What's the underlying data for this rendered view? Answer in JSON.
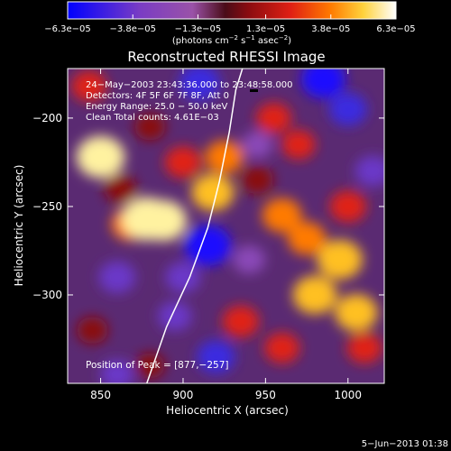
{
  "chart_data": {
    "type": "heatmap",
    "title": "Reconstructed RHESSI Image",
    "xlabel": "Heliocentric X (arcsec)",
    "ylabel": "Heliocentric Y (arcsec)",
    "xlim": [
      830,
      1022
    ],
    "ylim": [
      -350,
      -172
    ],
    "x_ticks": [
      850,
      900,
      950,
      1000
    ],
    "x_tick_labels": [
      "850",
      "900",
      "950",
      "1000"
    ],
    "y_ticks": [
      -200,
      -250,
      -300
    ],
    "y_tick_labels": [
      "−200",
      "−250",
      "−300"
    ],
    "colorbar": {
      "range": [
        -6.3e-05,
        6.3e-05
      ],
      "ticks": [
        -6.3e-05,
        -3.8e-05,
        -1.3e-05,
        1.3e-05,
        3.8e-05,
        6.3e-05
      ],
      "tick_labels": [
        "−6.3e−05",
        "−3.8e−05",
        "−1.3e−05",
        "1.3e−05",
        "3.8e−05",
        "6.3e−05"
      ],
      "units_main": "(photons cm",
      "units_exp1": "−2",
      "units_mid": " s",
      "units_exp2": "−1",
      "units_mid2": " asec",
      "units_exp3": "−2",
      "units_end": ")",
      "colors": [
        "#0000ff",
        "#7a3cc4",
        "#9a52a8",
        "#5a0f1e",
        "#c81414",
        "#ff6a00",
        "#ffd23c",
        "#ffffff"
      ]
    },
    "info_lines": [
      "24−May−2003 23:43:36.000 to 23:48:58.000",
      "Detectors: 4F 5F 6F 7F 8F, Att 0",
      "Energy Range: 25.0 − 50.0 keV",
      "Clean     Total counts: 4.61E−03"
    ],
    "peak_label": "Position of Peak = [877,−257]",
    "limb_line": [
      [
        878,
        -350
      ],
      [
        890,
        -318
      ],
      [
        904,
        -290
      ],
      [
        915,
        -262
      ],
      [
        922,
        -236
      ],
      [
        928,
        -208
      ],
      [
        932,
        -184
      ],
      [
        936,
        -172
      ]
    ],
    "blobs": [
      {
        "x": 850,
        "y": -222,
        "v": 0.95
      },
      {
        "x": 843,
        "y": -182,
        "v": 0.5
      },
      {
        "x": 862,
        "y": -240,
        "v": 0.4
      },
      {
        "x": 868,
        "y": -260,
        "v": 0.6
      },
      {
        "x": 900,
        "y": -225,
        "v": 0.55
      },
      {
        "x": 878,
        "y": -257,
        "v": 1.0
      },
      {
        "x": 888,
        "y": -258,
        "v": 0.9
      },
      {
        "x": 880,
        "y": -205,
        "v": 0.35
      },
      {
        "x": 918,
        "y": -242,
        "v": 0.75
      },
      {
        "x": 925,
        "y": -222,
        "v": 0.6
      },
      {
        "x": 955,
        "y": -200,
        "v": 0.5
      },
      {
        "x": 960,
        "y": -255,
        "v": 0.65
      },
      {
        "x": 935,
        "y": -315,
        "v": 0.55
      },
      {
        "x": 960,
        "y": -330,
        "v": 0.5
      },
      {
        "x": 980,
        "y": -300,
        "v": 0.8
      },
      {
        "x": 995,
        "y": -280,
        "v": 0.85
      },
      {
        "x": 1005,
        "y": -310,
        "v": 0.75
      },
      {
        "x": 1000,
        "y": -250,
        "v": 0.55
      },
      {
        "x": 975,
        "y": -268,
        "v": 0.6
      },
      {
        "x": 1010,
        "y": -330,
        "v": 0.5
      },
      {
        "x": 970,
        "y": -215,
        "v": 0.45
      },
      {
        "x": 845,
        "y": -320,
        "v": 0.35
      },
      {
        "x": 880,
        "y": -340,
        "v": 0.3
      },
      {
        "x": 945,
        "y": -235,
        "v": 0.4
      },
      {
        "x": 910,
        "y": -180,
        "v": -0.7
      },
      {
        "x": 985,
        "y": -178,
        "v": -0.8
      },
      {
        "x": 1000,
        "y": -195,
        "v": -0.6
      },
      {
        "x": 915,
        "y": -272,
        "v": -0.9
      },
      {
        "x": 860,
        "y": -290,
        "v": -0.55
      },
      {
        "x": 900,
        "y": -290,
        "v": -0.5
      },
      {
        "x": 920,
        "y": -335,
        "v": -0.6
      },
      {
        "x": 860,
        "y": -345,
        "v": -0.45
      },
      {
        "x": 940,
        "y": -280,
        "v": -0.4
      },
      {
        "x": 945,
        "y": -215,
        "v": -0.35
      },
      {
        "x": 1015,
        "y": -230,
        "v": -0.5
      },
      {
        "x": 895,
        "y": -312,
        "v": -0.45
      }
    ]
  },
  "footer": {
    "timestamp": "5−Jun−2013 01:38"
  }
}
